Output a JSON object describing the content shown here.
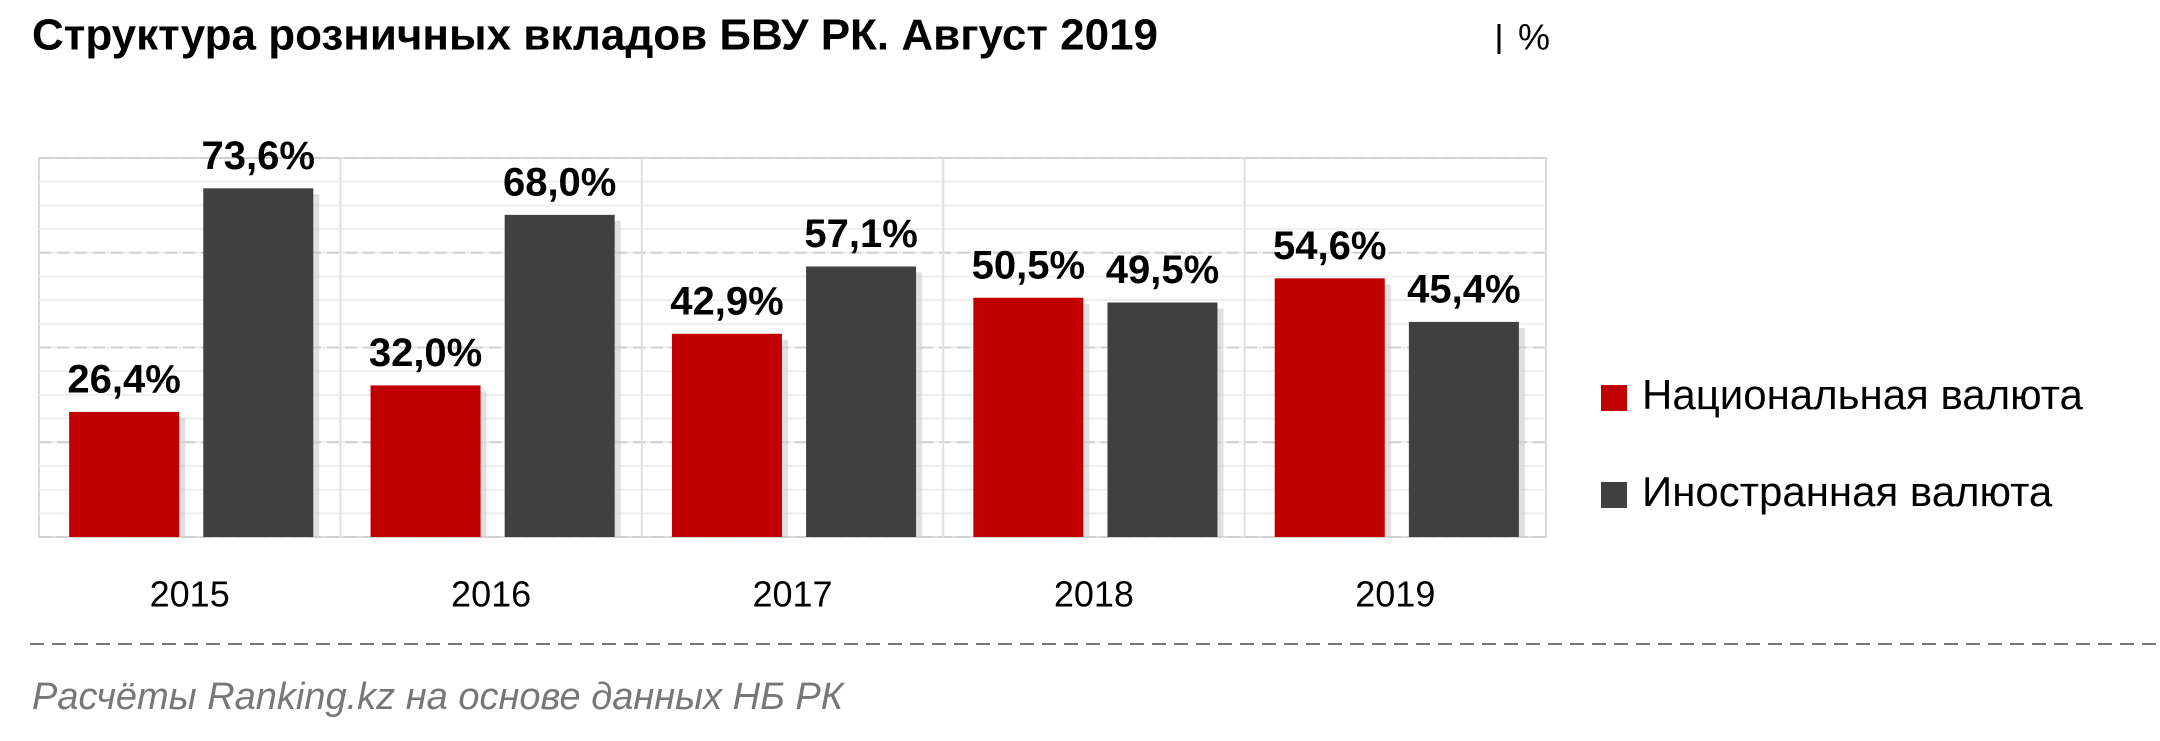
{
  "chart_data": {
    "type": "bar",
    "title": "Структура розничных вкладов БВУ РК. Август 2019",
    "unit": "%",
    "categories": [
      "2015",
      "2016",
      "2017",
      "2018",
      "2019"
    ],
    "series": [
      {
        "name": "Национальная валюта",
        "color": "#c00000",
        "values": [
          26.4,
          32.0,
          42.9,
          50.5,
          54.6
        ],
        "value_labels": [
          "26,4%",
          "32,0%",
          "42,9%",
          "50,5%",
          "54,6%"
        ]
      },
      {
        "name": "Иностранная валюта",
        "color": "#404040",
        "values": [
          73.6,
          68.0,
          57.1,
          49.5,
          45.4
        ],
        "value_labels": [
          "73,6%",
          "68,0%",
          "57,1%",
          "49,5%",
          "45,4%"
        ]
      }
    ],
    "ylim": [
      0,
      80
    ],
    "yticks": [
      0,
      20,
      40,
      60,
      80
    ],
    "grid": true,
    "source": "Расчёты Ranking.kz на основе данных НБ РК"
  }
}
